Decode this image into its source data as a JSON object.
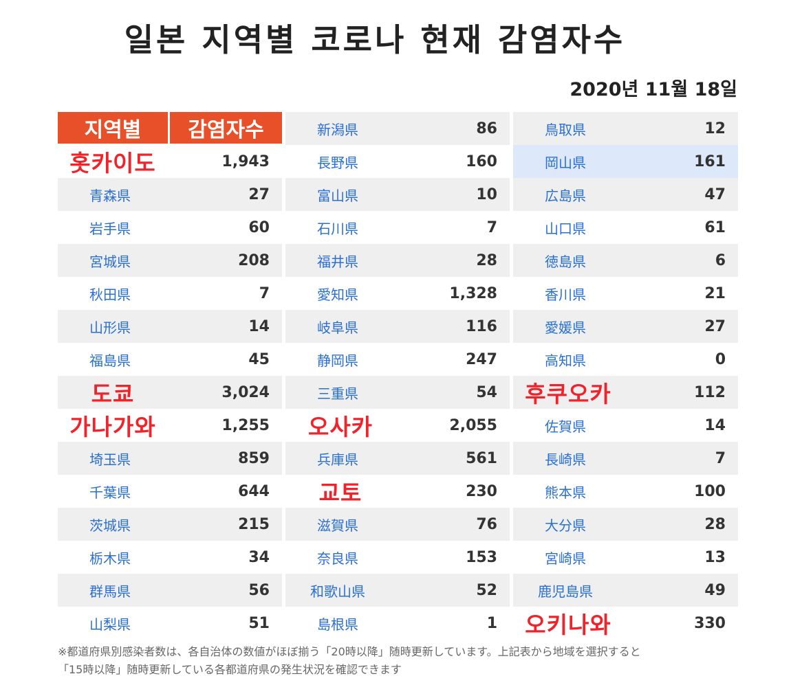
{
  "title": "일본 지역별 코로나 현재 감염자수",
  "date": "2020년 11월 18일",
  "header": {
    "region": "지역별",
    "count": "감염자수"
  },
  "columns": [
    [
      {
        "name": "홋카이도",
        "value": "1,943",
        "big": true
      },
      {
        "name": "青森県",
        "value": "27"
      },
      {
        "name": "岩手県",
        "value": "60"
      },
      {
        "name": "宮城県",
        "value": "208"
      },
      {
        "name": "秋田県",
        "value": "7"
      },
      {
        "name": "山形県",
        "value": "14"
      },
      {
        "name": "福島県",
        "value": "45"
      },
      {
        "name": "도쿄",
        "value": "3,024",
        "big": true
      },
      {
        "name": "가나가와",
        "value": "1,255",
        "big": true
      },
      {
        "name": "埼玉県",
        "value": "859"
      },
      {
        "name": "千葉県",
        "value": "644"
      },
      {
        "name": "茨城県",
        "value": "215"
      },
      {
        "name": "栃木県",
        "value": "34"
      },
      {
        "name": "群馬県",
        "value": "56"
      },
      {
        "name": "山梨県",
        "value": "51"
      }
    ],
    [
      {
        "name": "新潟県",
        "value": "86"
      },
      {
        "name": "長野県",
        "value": "160"
      },
      {
        "name": "富山県",
        "value": "10"
      },
      {
        "name": "石川県",
        "value": "7"
      },
      {
        "name": "福井県",
        "value": "28"
      },
      {
        "name": "愛知県",
        "value": "1,328"
      },
      {
        "name": "岐阜県",
        "value": "116"
      },
      {
        "name": "静岡県",
        "value": "247"
      },
      {
        "name": "三重県",
        "value": "54"
      },
      {
        "name": "오사카",
        "value": "2,055",
        "big": true
      },
      {
        "name": "兵庫県",
        "value": "561"
      },
      {
        "name": "교토",
        "value": "230",
        "big": true
      },
      {
        "name": "滋賀県",
        "value": "76"
      },
      {
        "name": "奈良県",
        "value": "153"
      },
      {
        "name": "和歌山県",
        "value": "52"
      },
      {
        "name": "島根県",
        "value": "1"
      }
    ],
    [
      {
        "name": "鳥取県",
        "value": "12"
      },
      {
        "name": "岡山県",
        "value": "161",
        "highlight": true
      },
      {
        "name": "広島県",
        "value": "47"
      },
      {
        "name": "山口県",
        "value": "61"
      },
      {
        "name": "徳島県",
        "value": "6"
      },
      {
        "name": "香川県",
        "value": "21"
      },
      {
        "name": "愛媛県",
        "value": "27"
      },
      {
        "name": "高知県",
        "value": "0"
      },
      {
        "name": "후쿠오카",
        "value": "112",
        "big": true
      },
      {
        "name": "佐賀県",
        "value": "14"
      },
      {
        "name": "長崎県",
        "value": "7"
      },
      {
        "name": "熊本県",
        "value": "100"
      },
      {
        "name": "大分県",
        "value": "28"
      },
      {
        "name": "宮崎県",
        "value": "13"
      },
      {
        "name": "鹿児島県",
        "value": "49"
      },
      {
        "name": "오키나와",
        "value": "330",
        "big": true
      }
    ]
  ],
  "footnote_1": "※都道府県別感染者数は、各自治体の数値がほぼ揃う「20時以降」随時更新しています。上記表から地域を選択すると",
  "footnote_2": "「15時以降」随時更新している各都道府県の発生状況を確認できます"
}
